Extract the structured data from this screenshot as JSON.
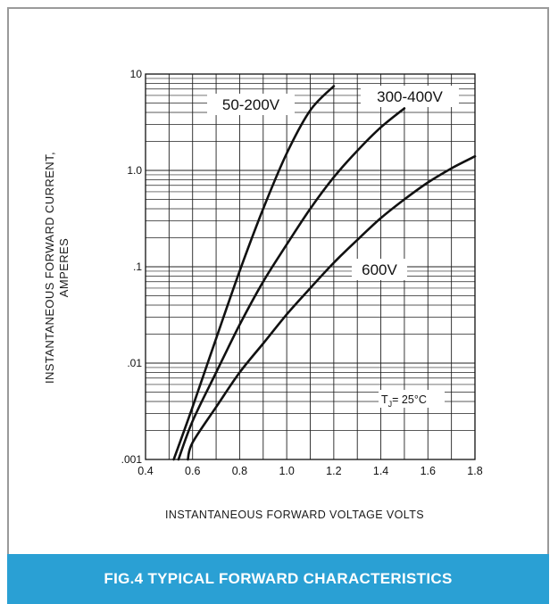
{
  "chart_data": {
    "type": "line",
    "title": "FIG.4 TYPICAL FORWARD CHARACTERISTICS",
    "xlabel": "INSTANTANEOUS FORWARD VOLTAGE VOLTS",
    "ylabel_line1": "INSTANTANEOUS FORWARD CURRENT,",
    "ylabel_line2": "AMPERES",
    "xlim": [
      0.4,
      1.8
    ],
    "ylim": [
      0.001,
      10
    ],
    "yscale": "log",
    "grid": true,
    "x_ticks": [
      "0.4",
      "0.6",
      "0.8",
      "1.0",
      "1.2",
      "1.4",
      "1.6",
      "1.8"
    ],
    "y_ticks": [
      ".001",
      ".01",
      ".1",
      "1.0",
      "10"
    ],
    "annotation": {
      "base": "T",
      "sub": "J",
      "rest": "= 25°C"
    },
    "series": [
      {
        "name": "50-200V",
        "x": [
          0.52,
          0.6,
          0.7,
          0.8,
          0.9,
          1.0,
          1.1,
          1.2
        ],
        "y": [
          0.001,
          0.0035,
          0.018,
          0.09,
          0.4,
          1.5,
          4.2,
          7.5
        ]
      },
      {
        "name": "300-400V",
        "x": [
          0.54,
          0.6,
          0.7,
          0.8,
          0.9,
          1.0,
          1.1,
          1.2,
          1.3,
          1.4,
          1.5
        ],
        "y": [
          0.001,
          0.0025,
          0.008,
          0.025,
          0.07,
          0.17,
          0.4,
          0.85,
          1.6,
          2.8,
          4.4
        ]
      },
      {
        "name": "600V",
        "x": [
          0.58,
          0.6,
          0.7,
          0.8,
          0.9,
          1.0,
          1.1,
          1.2,
          1.3,
          1.4,
          1.5,
          1.6,
          1.7,
          1.8
        ],
        "y": [
          0.001,
          0.0015,
          0.0035,
          0.008,
          0.016,
          0.032,
          0.06,
          0.11,
          0.19,
          0.32,
          0.5,
          0.75,
          1.05,
          1.4
        ]
      }
    ]
  }
}
